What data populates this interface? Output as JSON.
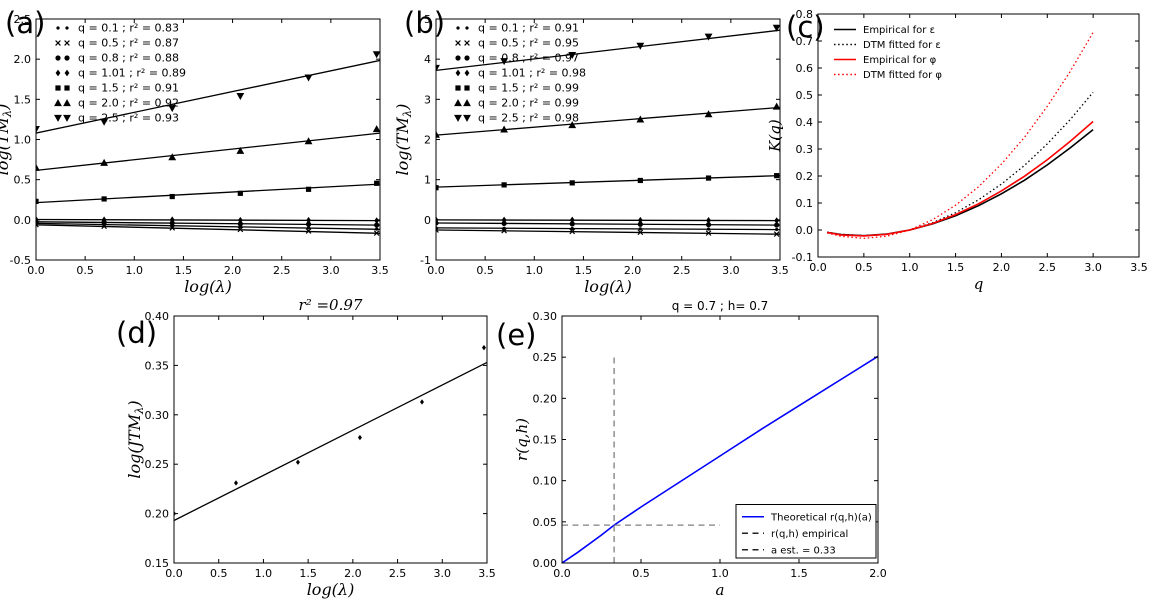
{
  "figure": {
    "background": "#ffffff"
  },
  "chart_data": [
    {
      "id": "a",
      "panel_label": "(a)",
      "type": "scatter",
      "title": "",
      "xlabel": "log(λ)",
      "ylabel": "log(TM_λ)",
      "xlim": [
        0,
        3.5
      ],
      "ylim": [
        -0.5,
        2.5
      ],
      "xticks": [
        0,
        0.5,
        1,
        1.5,
        2,
        2.5,
        3,
        3.5
      ],
      "xdec": 1,
      "yticks": [
        -0.5,
        0,
        0.5,
        1,
        1.5,
        2,
        2.5
      ],
      "ydec": 1,
      "grid": false,
      "legend": {
        "loc": "upper left",
        "frame": false
      },
      "points_x": [
        0,
        0.693,
        1.386,
        2.079,
        2.773,
        3.466
      ],
      "series": [
        {
          "label": "q = 0.1 ;  r² = 0.83",
          "marker": "dot",
          "color": "#000000",
          "points_y": [
            -0.04,
            -0.055,
            -0.07,
            -0.085,
            -0.1,
            -0.115
          ],
          "fit": [
            [
              0,
              -0.045
            ],
            [
              3.5,
              -0.118
            ]
          ]
        },
        {
          "label": "q = 0.5 ;  r² = 0.87",
          "marker": "x",
          "color": "#000000",
          "points_y": [
            -0.06,
            -0.08,
            -0.1,
            -0.12,
            -0.14,
            -0.165
          ],
          "fit": [
            [
              0,
              -0.062
            ],
            [
              3.5,
              -0.168
            ]
          ]
        },
        {
          "label": "q = 0.8 ;  r² = 0.88",
          "marker": "circle",
          "color": "#000000",
          "points_y": [
            -0.025,
            -0.03,
            -0.04,
            -0.05,
            -0.055,
            -0.065
          ],
          "fit": [
            [
              0,
              -0.025
            ],
            [
              3.5,
              -0.066
            ]
          ]
        },
        {
          "label": "q = 1.01 ;  r² = 0.89",
          "marker": "diamond",
          "color": "#000000",
          "points_y": [
            0.005,
            0,
            0,
            -0.005,
            -0.005,
            -0.01
          ],
          "fit": [
            [
              0,
              0.004
            ],
            [
              3.5,
              -0.01
            ]
          ]
        },
        {
          "label": "q = 1.5 ;  r² = 0.91",
          "marker": "square",
          "color": "#000000",
          "points_y": [
            0.23,
            0.26,
            0.29,
            0.33,
            0.38,
            0.455
          ],
          "fit": [
            [
              0,
              0.215
            ],
            [
              3.5,
              0.445
            ]
          ]
        },
        {
          "label": "q = 2.0 ;  r² = 0.92",
          "marker": "tri-up",
          "color": "#000000",
          "points_y": [
            0.65,
            0.71,
            0.78,
            0.86,
            0.98,
            1.13
          ],
          "fit": [
            [
              0,
              0.615
            ],
            [
              3.5,
              1.08
            ]
          ]
        },
        {
          "label": "q = 2.5 ;  r² = 0.93",
          "marker": "tri-down",
          "color": "#000000",
          "points_y": [
            1.13,
            1.22,
            1.39,
            1.54,
            1.77,
            2.06
          ],
          "fit": [
            [
              0,
              1.08
            ],
            [
              3.5,
              1.985
            ]
          ]
        }
      ]
    },
    {
      "id": "b",
      "panel_label": "(b)",
      "type": "scatter",
      "title": "",
      "xlabel": "log(λ)",
      "ylabel": "log(TM_λ)",
      "xlim": [
        0,
        3.5
      ],
      "ylim": [
        -1,
        5
      ],
      "xticks": [
        0,
        0.5,
        1,
        1.5,
        2,
        2.5,
        3,
        3.5
      ],
      "xdec": 1,
      "yticks": [
        -1,
        0,
        1,
        2,
        3,
        4,
        5
      ],
      "ydec": 0,
      "grid": false,
      "legend": {
        "loc": "upper left",
        "frame": false
      },
      "points_x": [
        0,
        0.693,
        1.386,
        2.079,
        2.773,
        3.466
      ],
      "series": [
        {
          "label": "q = 0.1 ;  r² = 0.91",
          "marker": "dot",
          "color": "#000000",
          "points_y": [
            -0.2,
            -0.21,
            -0.215,
            -0.225,
            -0.23,
            -0.24
          ],
          "fit": [
            [
              0,
              -0.2
            ],
            [
              3.5,
              -0.242
            ]
          ]
        },
        {
          "label": "q = 0.5 ;  r² = 0.95",
          "marker": "x",
          "color": "#000000",
          "points_y": [
            -0.255,
            -0.27,
            -0.29,
            -0.31,
            -0.33,
            -0.355
          ],
          "fit": [
            [
              0,
              -0.253
            ],
            [
              3.5,
              -0.358
            ]
          ]
        },
        {
          "label": "q = 0.8 ;  r² = 0.97",
          "marker": "circle",
          "color": "#000000",
          "points_y": [
            -0.08,
            -0.09,
            -0.1,
            -0.11,
            -0.12,
            -0.13
          ],
          "fit": [
            [
              0,
              -0.08
            ],
            [
              3.5,
              -0.132
            ]
          ]
        },
        {
          "label": "q = 1.01 ;  r² = 0.98",
          "marker": "diamond",
          "color": "#000000",
          "points_y": [
            0,
            -0.005,
            -0.005,
            -0.01,
            -0.015,
            -0.02
          ],
          "fit": [
            [
              0,
              -0.002
            ],
            [
              3.5,
              -0.02
            ]
          ]
        },
        {
          "label": "q = 1.5 ;  r² = 0.99",
          "marker": "square",
          "color": "#000000",
          "points_y": [
            0.8,
            0.87,
            0.92,
            0.98,
            1.04,
            1.1
          ],
          "fit": [
            [
              0,
              0.815
            ],
            [
              3.5,
              1.1
            ]
          ]
        },
        {
          "label": "q = 2.0 ;  r² = 0.99",
          "marker": "tri-up",
          "color": "#000000",
          "points_y": [
            2.12,
            2.25,
            2.36,
            2.5,
            2.63,
            2.82
          ],
          "fit": [
            [
              0,
              2.11
            ],
            [
              3.5,
              2.8
            ]
          ]
        },
        {
          "label": "q = 2.5 ;  r² = 0.98",
          "marker": "tri-down",
          "color": "#000000",
          "points_y": [
            3.78,
            3.95,
            4.1,
            4.33,
            4.56,
            4.78
          ],
          "fit": [
            [
              0,
              3.72
            ],
            [
              3.5,
              4.72
            ]
          ]
        }
      ]
    },
    {
      "id": "c",
      "panel_label": "(c)",
      "type": "line",
      "title": "",
      "xlabel": "q",
      "ylabel": "K(q)",
      "xlim": [
        0,
        3.5
      ],
      "ylim": [
        -0.1,
        0.8
      ],
      "xticks": [
        0,
        0.5,
        1,
        1.5,
        2,
        2.5,
        3,
        3.5
      ],
      "xdec": 1,
      "yticks": [
        -0.1,
        0,
        0.1,
        0.2,
        0.3,
        0.4,
        0.5,
        0.6,
        0.7,
        0.8
      ],
      "ydec": 1,
      "grid": false,
      "legend": {
        "loc": "upper left",
        "frame": false
      },
      "x": [
        0.1,
        0.25,
        0.5,
        0.75,
        1,
        1.25,
        1.5,
        1.75,
        2,
        2.25,
        2.5,
        2.75,
        3
      ],
      "series": [
        {
          "label": "Empirical for ε",
          "style": "solid",
          "color": "#000000",
          "y": [
            -0.009,
            -0.017,
            -0.021,
            -0.015,
            0,
            0.023,
            0.053,
            0.09,
            0.134,
            0.184,
            0.241,
            0.304,
            0.372
          ]
        },
        {
          "label": "DTM fitted for ε",
          "style": "dotted",
          "color": "#000000",
          "y": [
            -0.008,
            -0.016,
            -0.021,
            -0.016,
            0,
            0.027,
            0.064,
            0.112,
            0.17,
            0.239,
            0.319,
            0.409,
            0.51
          ]
        },
        {
          "label": "Empirical for φ",
          "style": "solid",
          "color": "#ff0000",
          "y": [
            -0.009,
            -0.018,
            -0.022,
            -0.016,
            0,
            0.024,
            0.057,
            0.097,
            0.145,
            0.199,
            0.26,
            0.328,
            0.402
          ]
        },
        {
          "label": "DTM fitted for φ",
          "style": "dotted",
          "color": "#ff0000",
          "y": [
            -0.011,
            -0.023,
            -0.031,
            -0.023,
            0,
            0.038,
            0.092,
            0.16,
            0.244,
            0.343,
            0.458,
            0.587,
            0.732
          ]
        }
      ]
    },
    {
      "id": "d",
      "panel_label": "(d)",
      "type": "scatter",
      "title": "r² =0.97",
      "xlabel": "log(λ)",
      "ylabel": "log(JTM_λ)",
      "xlim": [
        0,
        3.5
      ],
      "ylim": [
        0.15,
        0.4
      ],
      "xticks": [
        0,
        0.5,
        1,
        1.5,
        2,
        2.5,
        3,
        3.5
      ],
      "xdec": 1,
      "yticks": [
        0.15,
        0.2,
        0.25,
        0.3,
        0.35,
        0.4
      ],
      "ydec": 2,
      "grid": false,
      "points_x": [
        0,
        0.693,
        1.386,
        2.079,
        2.773,
        3.466
      ],
      "series": [
        {
          "label": "",
          "marker": "diamond-sm",
          "color": "#000000",
          "points_y": [
            0.2,
            0.231,
            0.252,
            0.277,
            0.313,
            0.368
          ],
          "fit": [
            [
              0,
              0.193
            ],
            [
              3.5,
              0.353
            ]
          ]
        }
      ]
    },
    {
      "id": "e",
      "panel_label": "(e)",
      "type": "line",
      "title": "q = 0.7 ; h= 0.7",
      "xlabel": "a",
      "ylabel": "r(q,h)",
      "xlim": [
        0,
        2
      ],
      "ylim": [
        0,
        0.3
      ],
      "xticks": [
        0,
        0.5,
        1,
        1.5,
        2
      ],
      "xdec": 1,
      "yticks": [
        0,
        0.05,
        0.1,
        0.15,
        0.2,
        0.25,
        0.3
      ],
      "ydec": 2,
      "grid": false,
      "legend": {
        "loc": "lower right",
        "frame": true
      },
      "series": [
        {
          "label": "Theoretical r(q,h)(a)",
          "style": "solid",
          "color": "#0000ff",
          "x": [
            0,
            0.1,
            0.25,
            0.33,
            0.5,
            0.75,
            1,
            1.25,
            1.5,
            1.75,
            2
          ],
          "y": [
            0,
            0.013,
            0.034,
            0.046,
            0.068,
            0.099,
            0.13,
            0.161,
            0.191,
            0.221,
            0.251
          ]
        },
        {
          "label": "r(q,h) empirical",
          "style": "dashed",
          "color": "#7f7f7f",
          "legend_color": "#222222",
          "x": [
            0,
            1.0
          ],
          "y": [
            0.046,
            0.046
          ]
        },
        {
          "label": "a est. = 0.33",
          "style": "dashed",
          "color": "#7f7f7f",
          "legend_color": "#222222",
          "x": [
            0.33,
            0.33
          ],
          "y": [
            0,
            0.251
          ]
        }
      ]
    }
  ]
}
